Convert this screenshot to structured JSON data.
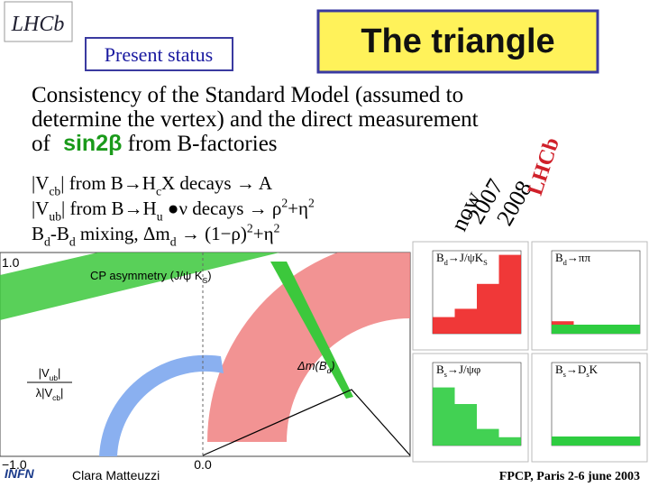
{
  "header": {
    "logo": "LHCb",
    "status": "Present status",
    "title": "The triangle"
  },
  "intro": {
    "lines": [
      "Consistency of the Standard Model (assumed to",
      "determine the vertex) and the direct measurement",
      "of "
    ],
    "highlight": "sin2β",
    "tail": " from B-factories"
  },
  "constraints": [
    [
      "|V",
      {
        "text": "cb",
        "pos": "sub"
      },
      "| from B→H",
      {
        "text": "c",
        "pos": "sub"
      },
      "X decays → ",
      "A"
    ],
    [
      "|V",
      {
        "text": "ub",
        "pos": "sub"
      },
      "| from B→H",
      {
        "text": "u",
        "pos": "sub"
      },
      " ●ν decays → ρ",
      {
        "text": "2",
        "pos": "sup"
      },
      "+η",
      {
        "text": "2",
        "pos": "sup"
      }
    ],
    [
      "B",
      {
        "text": "d",
        "pos": "sub"
      },
      "-B",
      {
        "text": "d",
        "pos": "sub"
      },
      " mixing, Δm",
      {
        "text": "d",
        "pos": "sub"
      },
      " → (1−ρ)",
      {
        "text": "2",
        "pos": "sup"
      },
      "+η",
      {
        "text": "2",
        "pos": "sup"
      }
    ]
  ],
  "timeline": {
    "now": "now",
    "y1": "2007",
    "y2": "2008",
    "experiment": "LHCb"
  },
  "plot": {
    "cp_label": [
      "CP asymmetry (J/ψ K",
      {
        "text": "S",
        "pos": "sub"
      },
      ")"
    ],
    "dm_label": [
      "Δm(B",
      {
        "text": "d",
        "pos": "sub"
      },
      ")"
    ],
    "ratio_num": [
      "|V",
      {
        "text": "ub",
        "pos": "sub"
      },
      "|"
    ],
    "ratio_den": [
      "λ|V",
      {
        "text": "cb",
        "pos": "sub"
      },
      "|"
    ],
    "y_top": "1.0",
    "x_left": "−1.0",
    "x_mid": "0.0"
  },
  "panels": [
    [
      "B",
      {
        "text": "d",
        "pos": "sub"
      },
      "→J/ψK",
      {
        "text": "S",
        "pos": "sub"
      }
    ],
    [
      "B",
      {
        "text": "d",
        "pos": "sub"
      },
      "→ππ"
    ],
    [
      "B",
      {
        "text": "s",
        "pos": "sub"
      },
      "→J/ψφ"
    ],
    [
      "B",
      {
        "text": "s",
        "pos": "sub"
      },
      "→D",
      {
        "text": "s",
        "pos": "sub"
      },
      "K"
    ]
  ],
  "footer": {
    "logo": "INFN",
    "author": "Clara Matteuzzi",
    "event": "FPCP, Paris 2-6 june 2003"
  }
}
